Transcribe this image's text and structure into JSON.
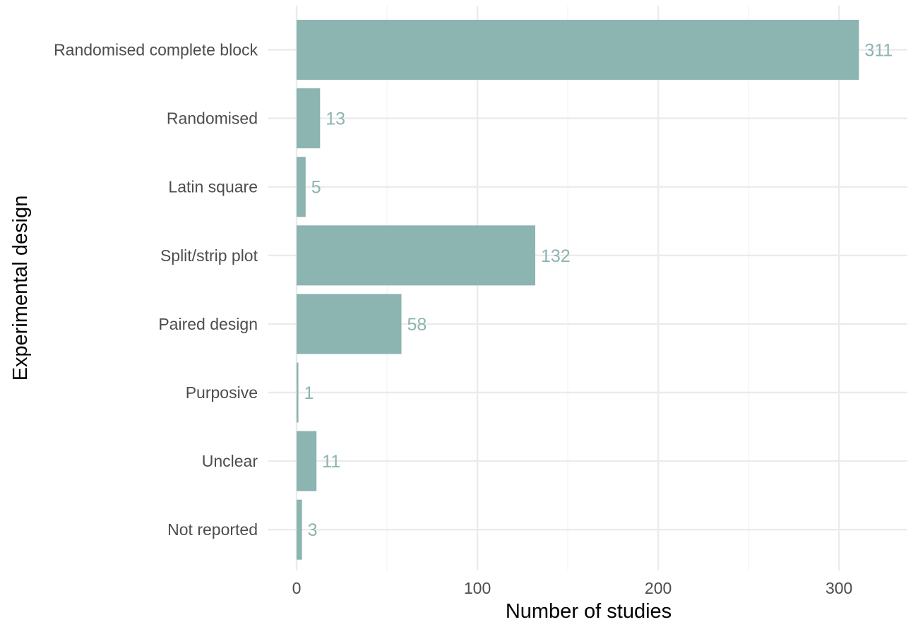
{
  "chart_data": {
    "type": "bar",
    "orientation": "horizontal",
    "title": "",
    "xlabel": "Number of studies",
    "ylabel": "Experimental design",
    "categories": [
      "Randomised complete block",
      "Randomised",
      "Latin square",
      "Split/strip plot",
      "Paired design",
      "Purposive",
      "Unclear",
      "Not reported"
    ],
    "values": [
      311,
      13,
      5,
      132,
      58,
      1,
      11,
      3
    ],
    "xlim": [
      0,
      340
    ],
    "x_ticks": [
      0,
      100,
      200,
      300
    ],
    "x_minor_ticks": [
      50,
      150,
      250
    ],
    "grid": true,
    "legend": "none",
    "bar_color": "#8cb4b0",
    "label_color": "#8cb4b0"
  }
}
